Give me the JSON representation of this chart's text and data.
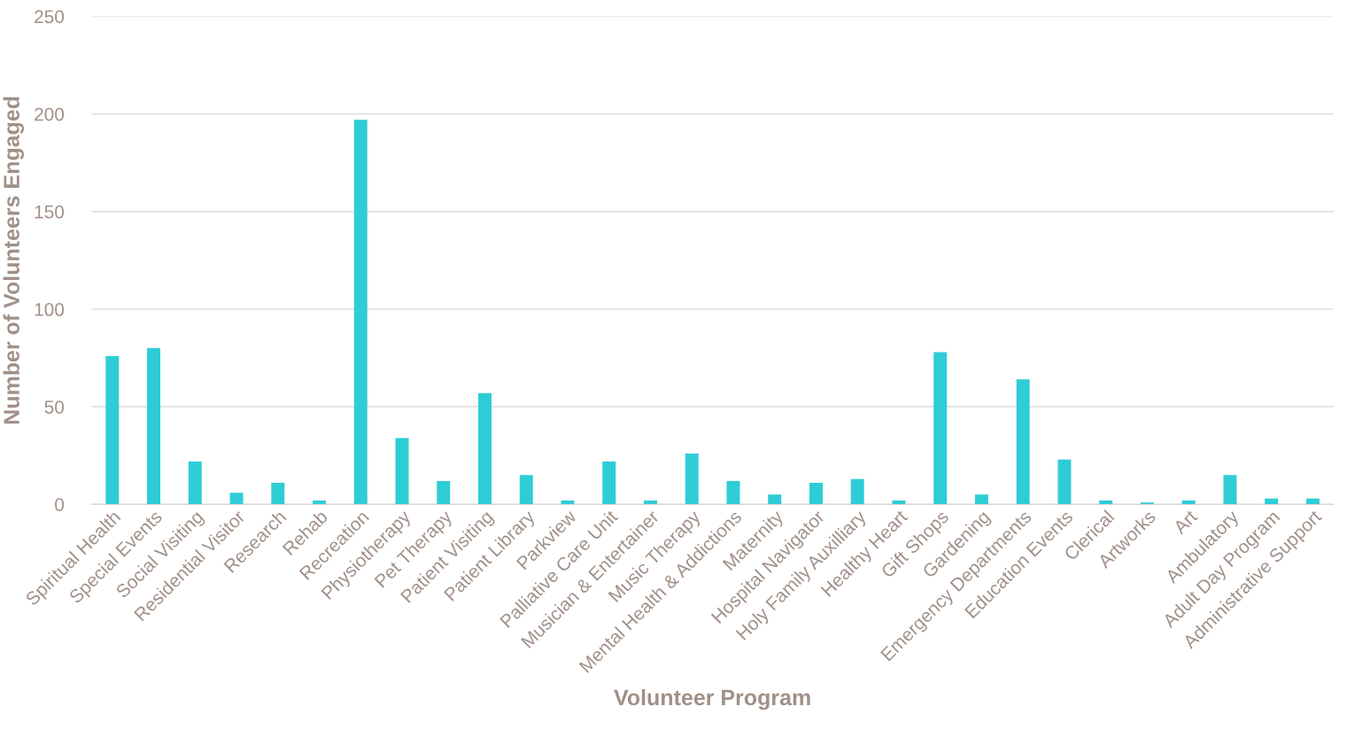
{
  "chart_data": {
    "type": "bar",
    "xlabel": "Volunteer Program",
    "ylabel": "Number of Volunteers Engaged",
    "categories": [
      "Spiritual Health",
      "Special Events",
      "Social Visiting",
      "Residential Visitor",
      "Research",
      "Rehab",
      "Recreation",
      "Physiotherapy",
      "Pet Therapy",
      "Patient Visiting",
      "Patient Library",
      "Parkview",
      "Palliative Care Unit",
      "Musician & Entertainer",
      "Music Therapy",
      "Mental Health & Addictions",
      "Maternity",
      "Hospital Navigator",
      "Holy Family Auxilliary",
      "Healthy Heart",
      "Gift Shops",
      "Gardening",
      "Emergency Departments",
      "Education Events",
      "Clerical",
      "Artworks",
      "Art",
      "Ambulatory",
      "Adult Day Program",
      "Administrative Support"
    ],
    "values": [
      76,
      80,
      22,
      6,
      11,
      2,
      197,
      34,
      12,
      57,
      15,
      2,
      22,
      2,
      26,
      12,
      5,
      11,
      13,
      2,
      78,
      5,
      64,
      23,
      2,
      1,
      2,
      15,
      3,
      3
    ],
    "color": "#2ecdd6",
    "ylim": [
      0,
      250
    ],
    "yticks": [
      0,
      50,
      100,
      150,
      200,
      250
    ],
    "grid": "y",
    "legend": false
  }
}
